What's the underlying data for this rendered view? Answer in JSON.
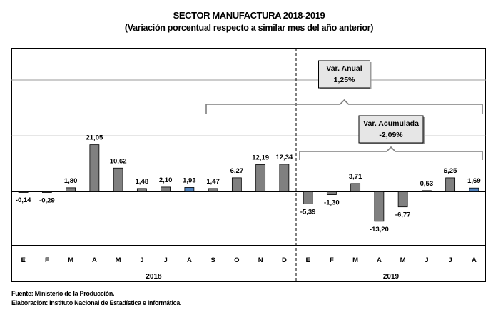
{
  "title": "SECTOR MANUFACTURA 2018-2019",
  "subtitle": "(Variación porcentual respecto a similar mes del año anterior)",
  "footer": {
    "source": "Fuente: Ministerio de la Producción.",
    "prepared_by": "Elaboración: Instituto Nacional de Estadística e Informática."
  },
  "annotations": {
    "anual": {
      "label": "Var. Anual",
      "value": "1,25%"
    },
    "acumulada": {
      "label": "Var. Acumulada",
      "value": "-2,09%"
    }
  },
  "colors": {
    "bar": "#808080",
    "highlight": "#4f81bd",
    "box": "#e6e6e6"
  },
  "chart_data": {
    "type": "bar",
    "categories": [
      "E",
      "F",
      "M",
      "A",
      "M",
      "J",
      "J",
      "A",
      "S",
      "O",
      "N",
      "D",
      "E",
      "F",
      "M",
      "A",
      "M",
      "J",
      "J",
      "A"
    ],
    "groups": [
      {
        "label": "2018",
        "count": 12
      },
      {
        "label": "2019",
        "count": 8
      }
    ],
    "values": [
      -0.14,
      -0.29,
      1.8,
      21.05,
      10.62,
      1.48,
      2.1,
      1.93,
      1.47,
      6.27,
      12.19,
      12.34,
      -5.39,
      -1.3,
      3.71,
      -13.2,
      -6.77,
      0.53,
      6.25,
      1.69
    ],
    "labels": [
      "-0,14",
      "-0,29",
      "1,80",
      "21,05",
      "10,62",
      "1,48",
      "2,10",
      "1,93",
      "1,47",
      "6,27",
      "12,19",
      "12,34",
      "-5,39",
      "-1,30",
      "3,71",
      "-13,20",
      "-6,77",
      "0,53",
      "6,25",
      "1,69"
    ],
    "highlighted": [
      7,
      19
    ],
    "grid": true
  }
}
